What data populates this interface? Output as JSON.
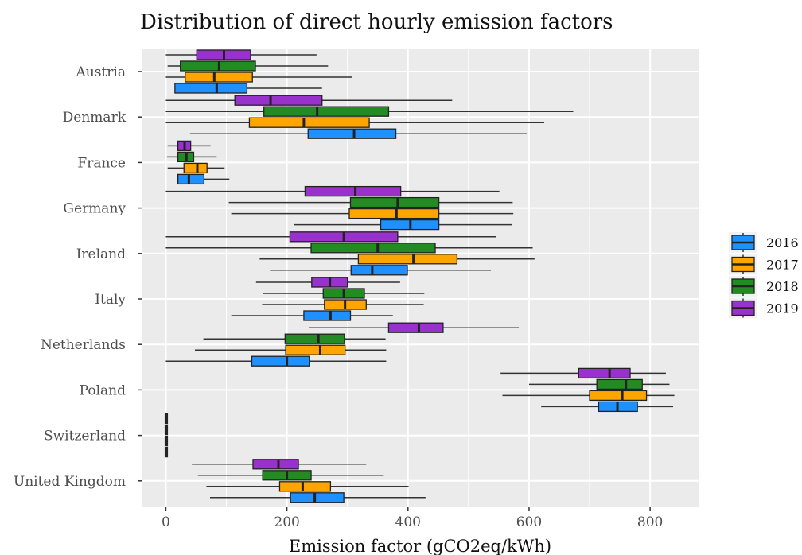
{
  "chart_data": {
    "type": "boxplot",
    "title": "Distribution of direct hourly emission factors",
    "xlabel": "Emission factor (gCO2eq/kWh)",
    "ylabel": "",
    "xlim": [
      -40,
      880
    ],
    "xticks": [
      0,
      200,
      400,
      600,
      800
    ],
    "grid": true,
    "legend_position": "right",
    "categories": [
      "Austria",
      "Denmark",
      "France",
      "Germany",
      "Ireland",
      "Italy",
      "Netherlands",
      "Poland",
      "Switzerland",
      "United Kingdom"
    ],
    "series": [
      {
        "name": "2016",
        "color": "#1E90FF",
        "boxes": [
          {
            "min": 15,
            "q1": 15,
            "median": 84,
            "q3": 134,
            "max": 258
          },
          {
            "min": 40,
            "q1": 235,
            "median": 311,
            "q3": 380,
            "max": 596
          },
          {
            "min": 20,
            "q1": 20,
            "median": 38,
            "q3": 63,
            "max": 105
          },
          {
            "min": 212,
            "q1": 355,
            "median": 404,
            "q3": 451,
            "max": 572
          },
          {
            "min": 172,
            "q1": 306,
            "median": 341,
            "q3": 399,
            "max": 537
          },
          {
            "min": 108,
            "q1": 228,
            "median": 272,
            "q3": 305,
            "max": 375
          },
          {
            "min": 0,
            "q1": 142,
            "median": 200,
            "q3": 237,
            "max": 364
          },
          {
            "min": 620,
            "q1": 715,
            "median": 746,
            "q3": 779,
            "max": 838
          },
          {
            "min": 0,
            "q1": 0,
            "median": 0,
            "q3": 0,
            "max": 0
          },
          {
            "min": 73,
            "q1": 206,
            "median": 246,
            "q3": 294,
            "max": 429
          }
        ]
      },
      {
        "name": "2017",
        "color": "#FFA500",
        "boxes": [
          {
            "min": 0,
            "q1": 32,
            "median": 80,
            "q3": 143,
            "max": 307
          },
          {
            "min": 0,
            "q1": 138,
            "median": 228,
            "q3": 336,
            "max": 625
          },
          {
            "min": 3,
            "q1": 30,
            "median": 52,
            "q3": 68,
            "max": 97
          },
          {
            "min": 108,
            "q1": 303,
            "median": 381,
            "q3": 451,
            "max": 574
          },
          {
            "min": 155,
            "q1": 318,
            "median": 409,
            "q3": 481,
            "max": 609
          },
          {
            "min": 159,
            "q1": 262,
            "median": 296,
            "q3": 331,
            "max": 426
          },
          {
            "min": 48,
            "q1": 198,
            "median": 255,
            "q3": 296,
            "max": 364
          },
          {
            "min": 556,
            "q1": 700,
            "median": 754,
            "q3": 794,
            "max": 840
          },
          {
            "min": 0,
            "q1": 0,
            "median": 0,
            "q3": 0,
            "max": 0
          },
          {
            "min": 67,
            "q1": 188,
            "median": 226,
            "q3": 272,
            "max": 401
          }
        ]
      },
      {
        "name": "2018",
        "color": "#228B22",
        "boxes": [
          {
            "min": 3,
            "q1": 24,
            "median": 88,
            "q3": 148,
            "max": 268
          },
          {
            "min": 0,
            "q1": 162,
            "median": 250,
            "q3": 368,
            "max": 673
          },
          {
            "min": 2,
            "q1": 20,
            "median": 34,
            "q3": 46,
            "max": 84
          },
          {
            "min": 104,
            "q1": 305,
            "median": 383,
            "q3": 451,
            "max": 573
          },
          {
            "min": 0,
            "q1": 240,
            "median": 350,
            "q3": 445,
            "max": 606
          },
          {
            "min": 160,
            "q1": 260,
            "median": 294,
            "q3": 328,
            "max": 427
          },
          {
            "min": 62,
            "q1": 197,
            "median": 252,
            "q3": 295,
            "max": 363
          },
          {
            "min": 600,
            "q1": 712,
            "median": 760,
            "q3": 787,
            "max": 832
          },
          {
            "min": 0,
            "q1": 0,
            "median": 0,
            "q3": 0,
            "max": 0
          },
          {
            "min": 53,
            "q1": 160,
            "median": 200,
            "q3": 240,
            "max": 360
          }
        ]
      },
      {
        "name": "2019",
        "color": "#9932CC",
        "boxes": [
          {
            "min": 0,
            "q1": 51,
            "median": 96,
            "q3": 140,
            "max": 249
          },
          {
            "min": 0,
            "q1": 114,
            "median": 173,
            "q3": 258,
            "max": 473
          },
          {
            "min": 3,
            "q1": 20,
            "median": 31,
            "q3": 41,
            "max": 74
          },
          {
            "min": 0,
            "q1": 230,
            "median": 313,
            "q3": 388,
            "max": 551
          },
          {
            "min": 0,
            "q1": 205,
            "median": 294,
            "q3": 383,
            "max": 546
          },
          {
            "min": 149,
            "q1": 241,
            "median": 271,
            "q3": 300,
            "max": 387
          },
          {
            "min": 236,
            "q1": 368,
            "median": 418,
            "q3": 458,
            "max": 583
          },
          {
            "min": 553,
            "q1": 682,
            "median": 733,
            "q3": 767,
            "max": 826
          },
          {
            "min": 0,
            "q1": 0,
            "median": 0,
            "q3": 0,
            "max": 0
          },
          {
            "min": 43,
            "q1": 144,
            "median": 186,
            "q3": 219,
            "max": 331
          }
        ]
      }
    ],
    "legend": {
      "entries": [
        "2016",
        "2017",
        "2018",
        "2019"
      ]
    },
    "colors": {
      "panel": "#EBEBEB",
      "grid": "#FFFFFF",
      "box_outline": "#222222",
      "whisker": "#333333"
    }
  }
}
